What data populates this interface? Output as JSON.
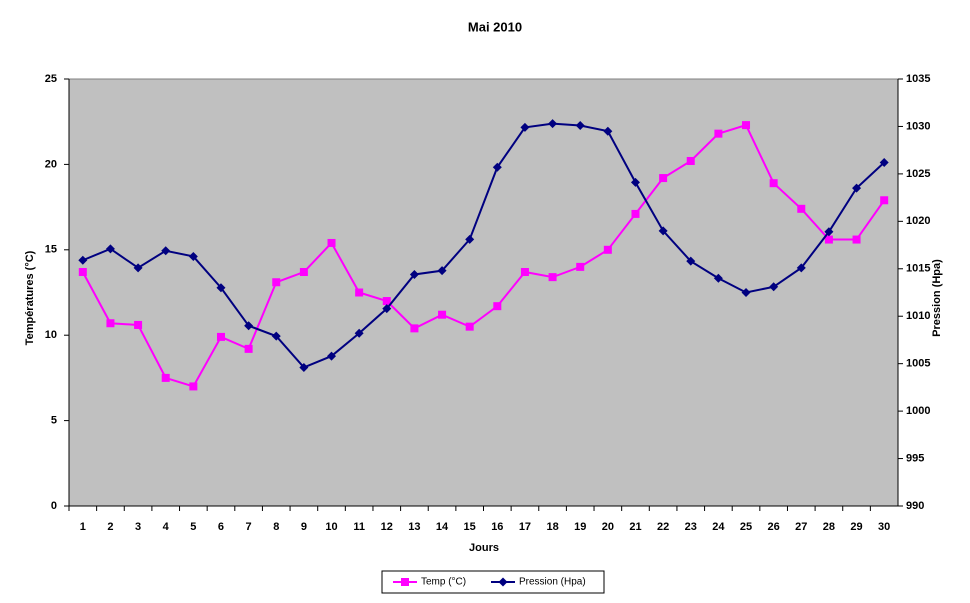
{
  "chart_data": {
    "type": "line",
    "title": "Mai 2010",
    "x_label": "Jours",
    "y_label": "Températures (°C)",
    "y2_label": "Pression (Hpa)",
    "categories": [
      "1",
      "2",
      "3",
      "4",
      "5",
      "6",
      "7",
      "8",
      "9",
      "10",
      "11",
      "12",
      "13",
      "14",
      "15",
      "16",
      "17",
      "18",
      "19",
      "20",
      "21",
      "22",
      "23",
      "24",
      "25",
      "26",
      "27",
      "28",
      "29",
      "30"
    ],
    "series": [
      {
        "name": "Temp (°C)",
        "color": "#ff00ff",
        "marker": "square",
        "values": [
          13.7,
          10.7,
          10.6,
          7.5,
          7.0,
          9.9,
          9.2,
          13.1,
          13.7,
          15.4,
          12.5,
          12.0,
          10.4,
          11.2,
          10.5,
          11.7,
          13.7,
          13.4,
          14.0,
          15.0,
          17.1,
          19.2,
          20.2,
          21.8,
          22.3,
          18.9,
          17.4,
          15.6,
          15.6,
          17.9
        ]
      },
      {
        "name": "Pression (Hpa)",
        "color": "#000080",
        "marker": "diamond",
        "axis": "y2",
        "values": [
          1015.9,
          1017.1,
          1015.1,
          1016.9,
          1016.3,
          1013.0,
          1009.0,
          1007.9,
          1004.6,
          1005.8,
          1008.2,
          1010.8,
          1014.4,
          1014.8,
          1018.1,
          1025.7,
          1029.9,
          1030.3,
          1030.1,
          1029.5,
          1024.1,
          1019.0,
          1015.8,
          1014.0,
          1012.5,
          1013.1,
          1015.1,
          1018.9,
          1023.5,
          1026.2
        ]
      }
    ],
    "ylim": [
      0,
      25
    ],
    "yticks": [
      0,
      5,
      10,
      15,
      20,
      25
    ],
    "y2lim": [
      990,
      1035
    ],
    "y2ticks": [
      990,
      995,
      1000,
      1005,
      1010,
      1015,
      1020,
      1025,
      1030,
      1035
    ],
    "plot_background": "#c0c0c0",
    "legend": "bottom"
  }
}
